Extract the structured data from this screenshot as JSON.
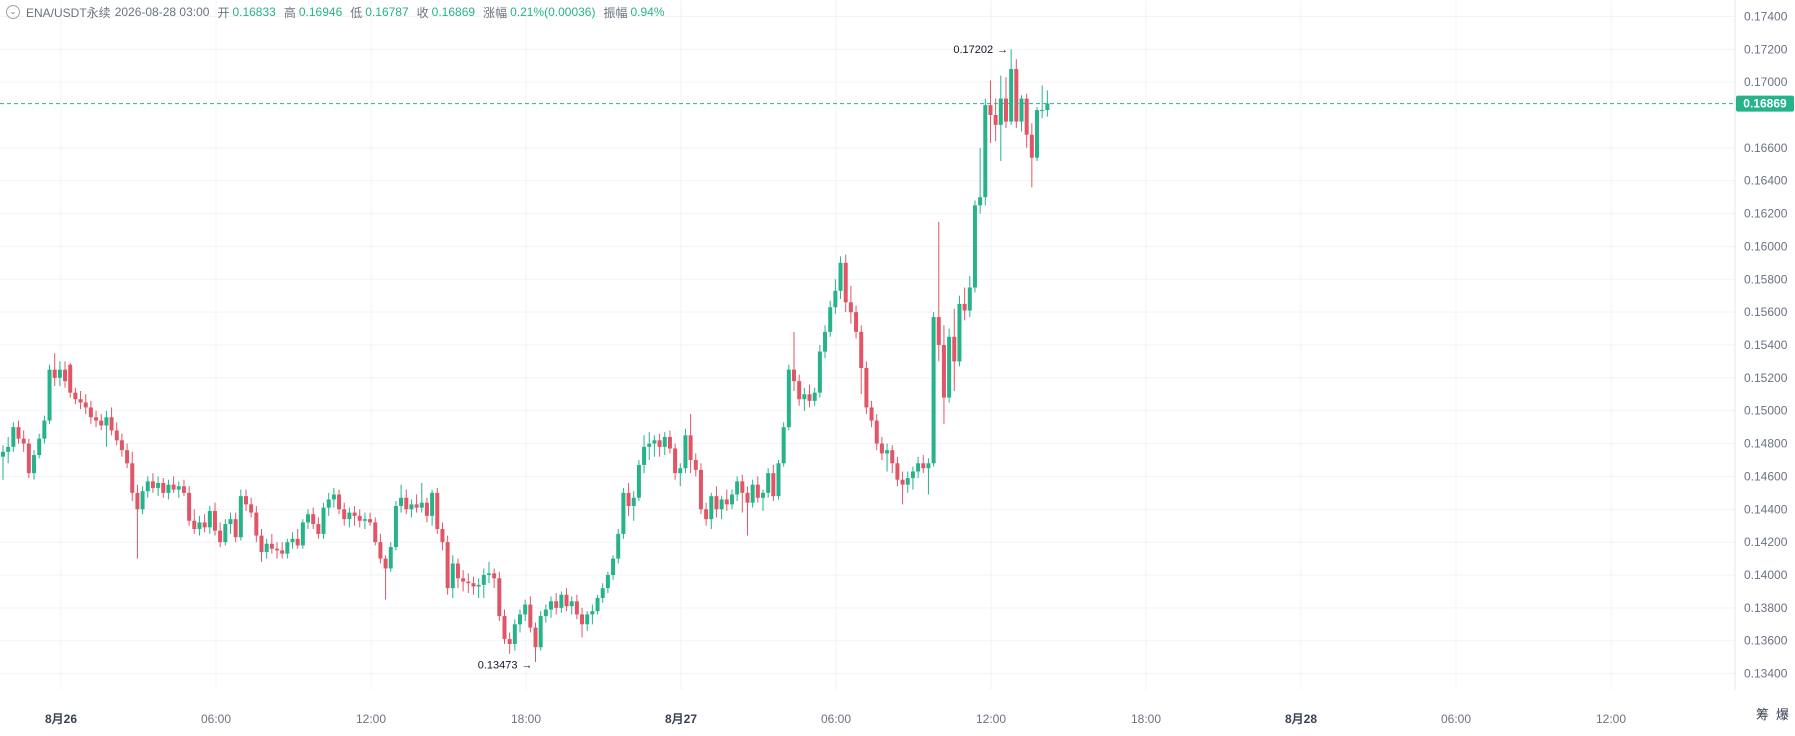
{
  "header": {
    "symbol": "ENA/USDT永续",
    "datetime": "2026-08-28 03:00",
    "open_label": "开",
    "open": "0.16833",
    "high_label": "高",
    "high": "0.16946",
    "low_label": "低",
    "low": "0.16787",
    "close_label": "收",
    "close": "0.16869",
    "change_label": "涨幅",
    "change": "0.21%(0.00036)",
    "amplitude_label": "振幅",
    "amplitude": "0.94%"
  },
  "side_labels": {
    "left": "筹",
    "right": "爆"
  },
  "colors": {
    "up": "#26b38a",
    "down": "#e05666",
    "last_price": "#26b38a",
    "grid": "#f1f3f5"
  },
  "chart_data": {
    "type": "candlestick",
    "interval": "30m",
    "ylim": [
      0.133,
      0.175
    ],
    "y_ticks": [
      "0.13400",
      "0.13600",
      "0.13800",
      "0.14000",
      "0.14200",
      "0.14400",
      "0.14600",
      "0.14800",
      "0.15000",
      "0.15200",
      "0.15400",
      "0.15600",
      "0.15800",
      "0.16000",
      "0.16200",
      "0.16400",
      "0.16600",
      "0.17000",
      "0.17200",
      "0.17400"
    ],
    "x_ticks": [
      "8月26",
      "06:00",
      "12:00",
      "18:00",
      "8月27",
      "06:00",
      "12:00",
      "18:00",
      "8月28",
      "06:00",
      "12:00"
    ],
    "x_tick_bold": [
      true,
      false,
      false,
      false,
      true,
      false,
      false,
      false,
      true,
      false,
      false
    ],
    "last_price": "0.16869",
    "annotations": [
      {
        "text": "0.17202",
        "type": "max",
        "value": 0.17202
      },
      {
        "text": "0.13473",
        "type": "min",
        "value": 0.13473
      }
    ],
    "candles": [
      [
        0.1472,
        0.1479,
        0.1458,
        0.1475
      ],
      [
        0.1475,
        0.1484,
        0.1468,
        0.1478
      ],
      [
        0.1478,
        0.1493,
        0.1475,
        0.149
      ],
      [
        0.149,
        0.1494,
        0.148,
        0.1483
      ],
      [
        0.1483,
        0.1488,
        0.1475,
        0.148
      ],
      [
        0.148,
        0.1483,
        0.1459,
        0.1462
      ],
      [
        0.1462,
        0.1476,
        0.1458,
        0.1473
      ],
      [
        0.1473,
        0.1486,
        0.1471,
        0.1483
      ],
      [
        0.1483,
        0.1497,
        0.148,
        0.1494
      ],
      [
        0.1494,
        0.1528,
        0.1492,
        0.1525
      ],
      [
        0.1525,
        0.1535,
        0.1515,
        0.152
      ],
      [
        0.152,
        0.153,
        0.1515,
        0.1525
      ],
      [
        0.1525,
        0.153,
        0.1514,
        0.1518
      ],
      [
        0.1528,
        0.1529,
        0.1508,
        0.1511
      ],
      [
        0.1511,
        0.1514,
        0.1504,
        0.1507
      ],
      [
        0.1507,
        0.1512,
        0.1501,
        0.1505
      ],
      [
        0.1505,
        0.151,
        0.1498,
        0.1502
      ],
      [
        0.1502,
        0.1506,
        0.1492,
        0.1496
      ],
      [
        0.1496,
        0.15,
        0.149,
        0.1494
      ],
      [
        0.1494,
        0.1498,
        0.1488,
        0.1491
      ],
      [
        0.1491,
        0.15,
        0.1478,
        0.1496
      ],
      [
        0.1496,
        0.1502,
        0.1485,
        0.1488
      ],
      [
        0.1488,
        0.1493,
        0.1479,
        0.1482
      ],
      [
        0.1482,
        0.1486,
        0.1472,
        0.1476
      ],
      [
        0.1476,
        0.148,
        0.1465,
        0.1468
      ],
      [
        0.1468,
        0.1475,
        0.1445,
        0.145
      ],
      [
        0.145,
        0.1455,
        0.141,
        0.144
      ],
      [
        0.144,
        0.1454,
        0.1437,
        0.1451
      ],
      [
        0.1451,
        0.146,
        0.1447,
        0.1457
      ],
      [
        0.1457,
        0.1462,
        0.145,
        0.1453
      ],
      [
        0.1453,
        0.146,
        0.1448,
        0.1456
      ],
      [
        0.1456,
        0.1459,
        0.1447,
        0.145
      ],
      [
        0.145,
        0.1458,
        0.1446,
        0.1455
      ],
      [
        0.1455,
        0.146,
        0.145,
        0.1452
      ],
      [
        0.1452,
        0.1457,
        0.1447,
        0.1454
      ],
      [
        0.1454,
        0.1458,
        0.1448,
        0.145
      ],
      [
        0.145,
        0.1454,
        0.143,
        0.1433
      ],
      [
        0.1433,
        0.144,
        0.1425,
        0.1428
      ],
      [
        0.1428,
        0.1436,
        0.1424,
        0.1432
      ],
      [
        0.1432,
        0.1437,
        0.1426,
        0.1429
      ],
      [
        0.1429,
        0.1442,
        0.1425,
        0.1439
      ],
      [
        0.1439,
        0.1444,
        0.1424,
        0.1427
      ],
      [
        0.1427,
        0.1432,
        0.1417,
        0.142
      ],
      [
        0.142,
        0.1434,
        0.1418,
        0.1431
      ],
      [
        0.1431,
        0.1438,
        0.1425,
        0.1434
      ],
      [
        0.1434,
        0.1438,
        0.142,
        0.1423
      ],
      [
        0.1423,
        0.1452,
        0.1421,
        0.1448
      ],
      [
        0.1448,
        0.1452,
        0.1439,
        0.1443
      ],
      [
        0.1443,
        0.1447,
        0.1435,
        0.1438
      ],
      [
        0.1438,
        0.1442,
        0.142,
        0.1424
      ],
      [
        0.1424,
        0.1428,
        0.1408,
        0.1414
      ],
      [
        0.1414,
        0.1422,
        0.141,
        0.1419
      ],
      [
        0.1419,
        0.1425,
        0.1413,
        0.1416
      ],
      [
        0.1416,
        0.142,
        0.141,
        0.1415
      ],
      [
        0.1415,
        0.142,
        0.141,
        0.1413
      ],
      [
        0.1413,
        0.1422,
        0.141,
        0.142
      ],
      [
        0.142,
        0.1426,
        0.1416,
        0.1422
      ],
      [
        0.1422,
        0.1428,
        0.1416,
        0.1418
      ],
      [
        0.1418,
        0.1434,
        0.1416,
        0.1432
      ],
      [
        0.1432,
        0.144,
        0.1428,
        0.1437
      ],
      [
        0.1437,
        0.1441,
        0.1428,
        0.1431
      ],
      [
        0.1431,
        0.1435,
        0.1422,
        0.1425
      ],
      [
        0.1425,
        0.1444,
        0.1422,
        0.1441
      ],
      [
        0.1441,
        0.145,
        0.1436,
        0.1446
      ],
      [
        0.1446,
        0.1453,
        0.1441,
        0.1449
      ],
      [
        0.1449,
        0.1452,
        0.1437,
        0.144
      ],
      [
        0.144,
        0.1444,
        0.143,
        0.1434
      ],
      [
        0.1434,
        0.1441,
        0.1429,
        0.1438
      ],
      [
        0.1438,
        0.1442,
        0.143,
        0.1436
      ],
      [
        0.1436,
        0.144,
        0.1429,
        0.1433
      ],
      [
        0.1433,
        0.1438,
        0.1428,
        0.1434
      ],
      [
        0.1434,
        0.1438,
        0.143,
        0.1432
      ],
      [
        0.1432,
        0.1435,
        0.1418,
        0.142
      ],
      [
        0.142,
        0.1425,
        0.1407,
        0.141
      ],
      [
        0.141,
        0.1412,
        0.1385,
        0.1404
      ],
      [
        0.1404,
        0.142,
        0.1402,
        0.1417
      ],
      [
        0.1417,
        0.1445,
        0.1415,
        0.1442
      ],
      [
        0.1442,
        0.1455,
        0.1438,
        0.1447
      ],
      [
        0.1447,
        0.1452,
        0.1437,
        0.144
      ],
      [
        0.144,
        0.1446,
        0.1435,
        0.1443
      ],
      [
        0.1443,
        0.1449,
        0.1438,
        0.1441
      ],
      [
        0.1441,
        0.1456,
        0.1438,
        0.1444
      ],
      [
        0.1444,
        0.1447,
        0.1432,
        0.1436
      ],
      [
        0.1436,
        0.1452,
        0.143,
        0.145
      ],
      [
        0.145,
        0.1453,
        0.1425,
        0.1428
      ],
      [
        0.1428,
        0.1432,
        0.1415,
        0.142
      ],
      [
        0.142,
        0.1424,
        0.1388,
        0.1392
      ],
      [
        0.1392,
        0.1412,
        0.1386,
        0.1407
      ],
      [
        0.1407,
        0.141,
        0.1392,
        0.1398
      ],
      [
        0.1398,
        0.1403,
        0.139,
        0.1396
      ],
      [
        0.1396,
        0.1401,
        0.1389,
        0.1395
      ],
      [
        0.1395,
        0.1399,
        0.1388,
        0.1393
      ],
      [
        0.1393,
        0.1398,
        0.1386,
        0.1394
      ],
      [
        0.1394,
        0.1404,
        0.1386,
        0.14
      ],
      [
        0.14,
        0.1408,
        0.1395,
        0.1401
      ],
      [
        0.1401,
        0.1404,
        0.1392,
        0.1398
      ],
      [
        0.1398,
        0.1402,
        0.1372,
        0.1375
      ],
      [
        0.1375,
        0.1379,
        0.1358,
        0.1361
      ],
      [
        0.1361,
        0.1365,
        0.1352,
        0.1358
      ],
      [
        0.1358,
        0.1373,
        0.1354,
        0.137
      ],
      [
        0.137,
        0.1379,
        0.1365,
        0.1376
      ],
      [
        0.1376,
        0.1385,
        0.1372,
        0.1382
      ],
      [
        0.1382,
        0.1387,
        0.1365,
        0.1368
      ],
      [
        0.1368,
        0.1371,
        0.1347,
        0.1356
      ],
      [
        0.1356,
        0.1378,
        0.1354,
        0.1375
      ],
      [
        0.1375,
        0.1382,
        0.1371,
        0.1379
      ],
      [
        0.1379,
        0.1387,
        0.1374,
        0.1384
      ],
      [
        0.1384,
        0.1389,
        0.1376,
        0.138
      ],
      [
        0.138,
        0.139,
        0.1377,
        0.1388
      ],
      [
        0.1388,
        0.1392,
        0.1378,
        0.1381
      ],
      [
        0.1381,
        0.1387,
        0.1376,
        0.1384
      ],
      [
        0.1384,
        0.1388,
        0.1373,
        0.1376
      ],
      [
        0.1376,
        0.138,
        0.1362,
        0.137
      ],
      [
        0.137,
        0.1378,
        0.1366,
        0.1376
      ],
      [
        0.1376,
        0.1382,
        0.137,
        0.1378
      ],
      [
        0.1378,
        0.1388,
        0.1376,
        0.1386
      ],
      [
        0.1386,
        0.1395,
        0.1383,
        0.1392
      ],
      [
        0.1392,
        0.1402,
        0.1389,
        0.14
      ],
      [
        0.14,
        0.1412,
        0.1397,
        0.141
      ],
      [
        0.141,
        0.1428,
        0.1407,
        0.1425
      ],
      [
        0.1425,
        0.1453,
        0.1422,
        0.145
      ],
      [
        0.145,
        0.1456,
        0.1436,
        0.1442
      ],
      [
        0.1442,
        0.1451,
        0.1433,
        0.1447
      ],
      [
        0.1447,
        0.147,
        0.1445,
        0.1467
      ],
      [
        0.1467,
        0.1485,
        0.1462,
        0.1478
      ],
      [
        0.1478,
        0.1487,
        0.147,
        0.148
      ],
      [
        0.148,
        0.1485,
        0.1472,
        0.1482
      ],
      [
        0.1482,
        0.1486,
        0.1472,
        0.1478
      ],
      [
        0.1478,
        0.1487,
        0.1473,
        0.1484
      ],
      [
        0.1484,
        0.1488,
        0.1474,
        0.1477
      ],
      [
        0.1477,
        0.148,
        0.1458,
        0.1462
      ],
      [
        0.1462,
        0.1468,
        0.1454,
        0.1465
      ],
      [
        0.1465,
        0.1489,
        0.1462,
        0.1485
      ],
      [
        0.1485,
        0.1498,
        0.1462,
        0.147
      ],
      [
        0.147,
        0.1474,
        0.146,
        0.1464
      ],
      [
        0.1464,
        0.1468,
        0.1437,
        0.144
      ],
      [
        0.144,
        0.1444,
        0.143,
        0.1434
      ],
      [
        0.1434,
        0.145,
        0.1428,
        0.1448
      ],
      [
        0.1448,
        0.1454,
        0.1435,
        0.144
      ],
      [
        0.144,
        0.1448,
        0.1434,
        0.1446
      ],
      [
        0.1446,
        0.1452,
        0.1439,
        0.1443
      ],
      [
        0.1443,
        0.1452,
        0.144,
        0.1449
      ],
      [
        0.1449,
        0.146,
        0.1445,
        0.1457
      ],
      [
        0.1457,
        0.1461,
        0.1438,
        0.145
      ],
      [
        0.145,
        0.1454,
        0.1424,
        0.1444
      ],
      [
        0.1444,
        0.1458,
        0.1441,
        0.1455
      ],
      [
        0.1455,
        0.146,
        0.1444,
        0.1447
      ],
      [
        0.1447,
        0.1452,
        0.1439,
        0.145
      ],
      [
        0.145,
        0.1465,
        0.1447,
        0.1462
      ],
      [
        0.1462,
        0.1467,
        0.1445,
        0.1448
      ],
      [
        0.1448,
        0.147,
        0.1446,
        0.1468
      ],
      [
        0.1468,
        0.1493,
        0.1466,
        0.149
      ],
      [
        0.149,
        0.1528,
        0.1488,
        0.1525
      ],
      [
        0.1525,
        0.1548,
        0.1512,
        0.1518
      ],
      [
        0.1518,
        0.1522,
        0.1503,
        0.1507
      ],
      [
        0.1507,
        0.1514,
        0.15,
        0.151
      ],
      [
        0.151,
        0.1516,
        0.1502,
        0.1506
      ],
      [
        0.1506,
        0.1514,
        0.1503,
        0.1511
      ],
      [
        0.1511,
        0.154,
        0.1508,
        0.1536
      ],
      [
        0.1536,
        0.1552,
        0.1532,
        0.1548
      ],
      [
        0.1548,
        0.1567,
        0.1545,
        0.1563
      ],
      [
        0.1563,
        0.158,
        0.1559,
        0.1573
      ],
      [
        0.1573,
        0.1594,
        0.1568,
        0.159
      ],
      [
        0.159,
        0.1595,
        0.156,
        0.1566
      ],
      [
        0.1566,
        0.1576,
        0.1553,
        0.156
      ],
      [
        0.156,
        0.1564,
        0.1544,
        0.1548
      ],
      [
        0.1548,
        0.1552,
        0.151,
        0.1526
      ],
      [
        0.1526,
        0.153,
        0.1498,
        0.1502
      ],
      [
        0.1502,
        0.1506,
        0.149,
        0.1494
      ],
      [
        0.1494,
        0.1498,
        0.1476,
        0.148
      ],
      [
        0.148,
        0.1484,
        0.147,
        0.1474
      ],
      [
        0.1474,
        0.148,
        0.1463,
        0.1476
      ],
      [
        0.1476,
        0.1479,
        0.1462,
        0.1468
      ],
      [
        0.1468,
        0.1472,
        0.1454,
        0.1458
      ],
      [
        0.1458,
        0.1463,
        0.1443,
        0.1455
      ],
      [
        0.1455,
        0.1463,
        0.145,
        0.1459
      ],
      [
        0.1459,
        0.1466,
        0.1452,
        0.1463
      ],
      [
        0.1463,
        0.1472,
        0.1459,
        0.1468
      ],
      [
        0.1468,
        0.1473,
        0.1462,
        0.1465
      ],
      [
        0.1465,
        0.1471,
        0.1449,
        0.1468
      ],
      [
        0.1468,
        0.156,
        0.1466,
        0.1557
      ],
      [
        0.1557,
        0.1615,
        0.153,
        0.154
      ],
      [
        0.154,
        0.1552,
        0.1492,
        0.1508
      ],
      [
        0.1508,
        0.155,
        0.1505,
        0.1545
      ],
      [
        0.1545,
        0.1562,
        0.1512,
        0.153
      ],
      [
        0.153,
        0.157,
        0.1527,
        0.1565
      ],
      [
        0.1565,
        0.1575,
        0.1555,
        0.1561
      ],
      [
        0.1561,
        0.1582,
        0.1557,
        0.1575
      ],
      [
        0.1575,
        0.1628,
        0.1572,
        0.1625
      ],
      [
        0.1625,
        0.166,
        0.162,
        0.163
      ],
      [
        0.163,
        0.169,
        0.1625,
        0.1686
      ],
      [
        0.1686,
        0.1701,
        0.1663,
        0.168
      ],
      [
        0.168,
        0.169,
        0.1664,
        0.1674
      ],
      [
        0.1674,
        0.1704,
        0.1652,
        0.169
      ],
      [
        0.169,
        0.1703,
        0.1672,
        0.1676
      ],
      [
        0.1676,
        0.172,
        0.1674,
        0.1708
      ],
      [
        0.1708,
        0.1714,
        0.1672,
        0.1676
      ],
      [
        0.1676,
        0.1692,
        0.167,
        0.169
      ],
      [
        0.169,
        0.1693,
        0.166,
        0.1668
      ],
      [
        0.1668,
        0.1675,
        0.1636,
        0.1654
      ],
      [
        0.1654,
        0.1685,
        0.1652,
        0.1683
      ],
      [
        0.1683,
        0.1698,
        0.1678,
        0.1683
      ],
      [
        0.1683,
        0.1695,
        0.1679,
        0.1687
      ]
    ]
  }
}
